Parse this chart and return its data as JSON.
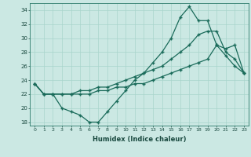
{
  "xlabel": "Humidex (Indice chaleur)",
  "bg_color": "#cbe8e3",
  "grid_color": "#a8d4cc",
  "line_color": "#1a6b5a",
  "xlim": [
    -0.5,
    23.5
  ],
  "ylim": [
    17.5,
    35.0
  ],
  "xticks": [
    0,
    1,
    2,
    3,
    4,
    5,
    6,
    7,
    8,
    9,
    10,
    11,
    12,
    13,
    14,
    15,
    16,
    17,
    18,
    19,
    20,
    21,
    22,
    23
  ],
  "yticks": [
    18,
    20,
    22,
    24,
    26,
    28,
    30,
    32,
    34
  ],
  "line1_x": [
    0,
    1,
    2,
    3,
    4,
    5,
    6,
    7,
    8,
    9,
    10,
    11,
    12,
    13,
    14,
    15,
    16,
    17,
    18,
    19,
    20,
    21,
    22,
    23
  ],
  "line1_y": [
    23.5,
    22.0,
    22.0,
    20.0,
    19.5,
    19.0,
    18.0,
    18.0,
    19.5,
    21.0,
    22.5,
    24.0,
    25.0,
    26.5,
    28.0,
    30.0,
    33.0,
    34.5,
    32.5,
    32.5,
    29.0,
    27.5,
    26.0,
    25.0
  ],
  "line2_x": [
    0,
    1,
    2,
    3,
    4,
    5,
    6,
    7,
    8,
    9,
    10,
    11,
    12,
    13,
    14,
    15,
    16,
    17,
    18,
    19,
    20,
    21,
    22,
    23
  ],
  "line2_y": [
    23.5,
    22.0,
    22.0,
    22.0,
    22.0,
    22.5,
    22.5,
    23.0,
    23.0,
    23.5,
    24.0,
    24.5,
    25.0,
    25.5,
    26.0,
    27.0,
    28.0,
    29.0,
    30.5,
    31.0,
    31.0,
    28.0,
    27.0,
    25.0
  ],
  "line3_x": [
    0,
    1,
    2,
    3,
    4,
    5,
    6,
    7,
    8,
    9,
    10,
    11,
    12,
    13,
    14,
    15,
    16,
    17,
    18,
    19,
    20,
    21,
    22,
    23
  ],
  "line3_y": [
    23.5,
    22.0,
    22.0,
    22.0,
    22.0,
    22.0,
    22.0,
    22.5,
    22.5,
    23.0,
    23.0,
    23.5,
    23.5,
    24.0,
    24.5,
    25.0,
    25.5,
    26.0,
    26.5,
    27.0,
    29.0,
    28.5,
    29.0,
    25.0
  ]
}
